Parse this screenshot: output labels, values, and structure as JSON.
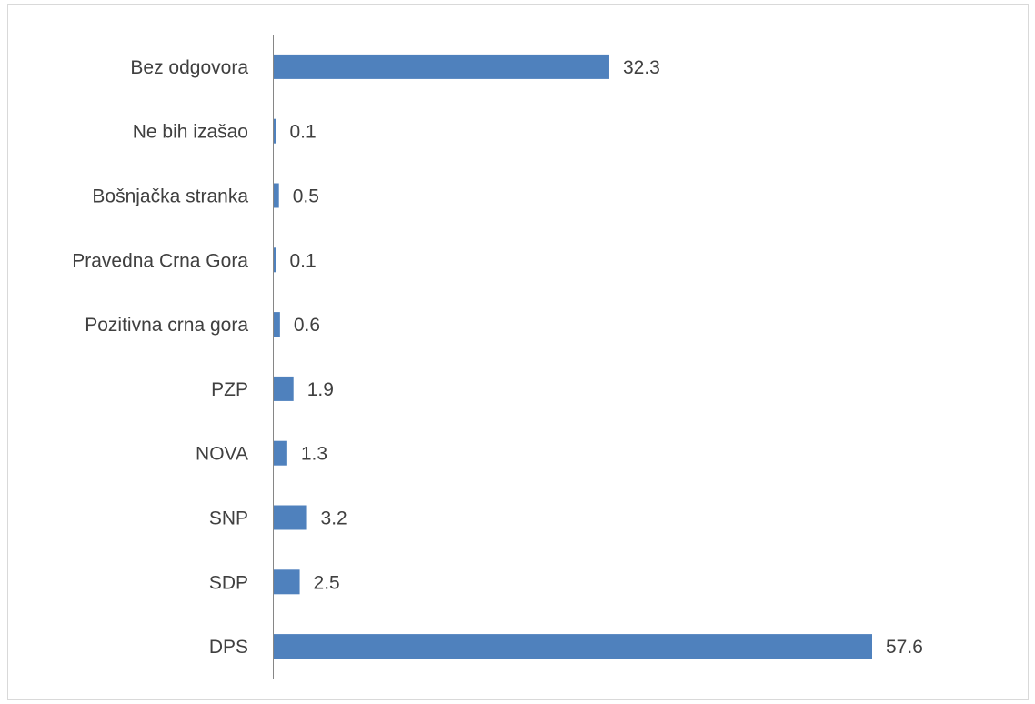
{
  "chart_data": {
    "type": "bar",
    "orientation": "horizontal",
    "color": "#4f81bd",
    "categories": [
      "Bez odgovora",
      "Ne bih izašao",
      "Bošnjačka stranka",
      "Pravedna Crna Gora",
      "Pozitivna crna gora",
      "PZP",
      "NOVA",
      "SNP",
      "SDP",
      "DPS"
    ],
    "values": [
      32.3,
      0.1,
      0.5,
      0.1,
      0.6,
      1.9,
      1.3,
      3.2,
      2.5,
      57.6
    ]
  }
}
